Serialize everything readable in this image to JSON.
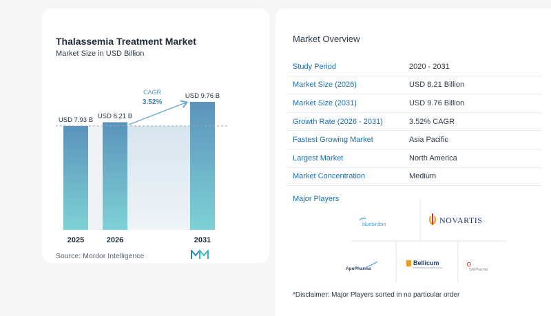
{
  "chart": {
    "title": "Thalassemia Treatment Market",
    "subtitle": "Market Size in USD Billion",
    "source": "Source:  Mordor Intelligence",
    "cagr_label": "CAGR",
    "cagr_value": "3.52%"
  },
  "chart_data": {
    "type": "bar",
    "categories": [
      "2025",
      "2026",
      "2031"
    ],
    "values": [
      7.93,
      8.21,
      9.76
    ],
    "data_labels": [
      "USD 7.93 B",
      "USD 8.21 B",
      "USD 9.76 B"
    ],
    "title": "Thalassemia Treatment Market",
    "subtitle": "Market Size in USD Billion",
    "ylim": [
      0,
      9.76
    ],
    "grid": false,
    "annotation": "CAGR 3.52%",
    "colors": {
      "bar_top": "#5b93bb",
      "bar_bottom": "#7ed2d6",
      "band": "#e4edf5"
    }
  },
  "overview": {
    "title": "Market Overview",
    "rows": [
      {
        "label": "Study Period",
        "value": "2020 - 2031"
      },
      {
        "label": "Market Size (2026)",
        "value": "USD 8.21 Billion"
      },
      {
        "label": "Market Size (2031)",
        "value": "USD 9.76 Billion"
      },
      {
        "label": "Growth Rate (2026 - 2031)",
        "value": "3.52% CAGR"
      },
      {
        "label": "Fastest Growing Market",
        "value": "Asia Pacific"
      },
      {
        "label": "Largest Market",
        "value": "North America"
      },
      {
        "label": "Market Concentration",
        "value": "Medium"
      }
    ],
    "players_title": "Major Players",
    "players": [
      "bluebirdbio",
      "NOVARTIS",
      "Bellicum",
      "ApoPharma",
      "SGPharma"
    ],
    "disclaimer": "*Disclaimer: Major Players sorted in no particular order"
  },
  "colors": {
    "accent": "#1a6fa6",
    "novartis_red": "#e2332c",
    "novartis_orange": "#f29a1f"
  }
}
